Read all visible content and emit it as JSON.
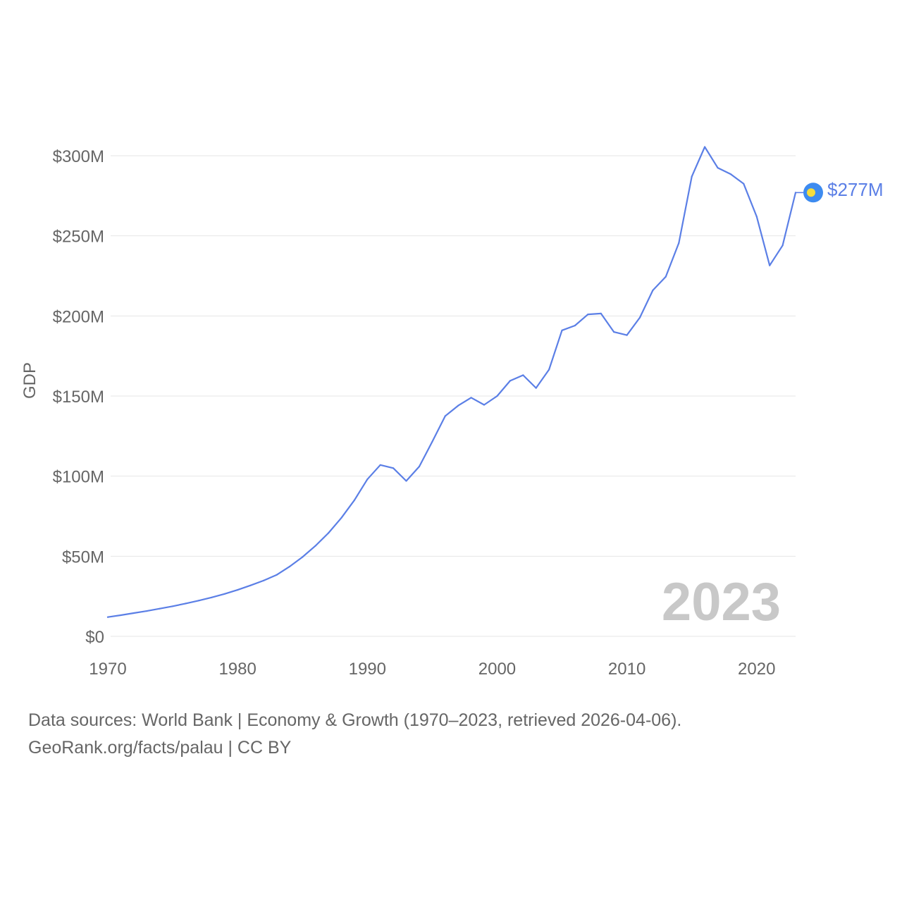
{
  "chart_data": {
    "type": "line",
    "title": "",
    "xlabel": "",
    "ylabel": "GDP",
    "xlim": [
      1970,
      2023
    ],
    "ylim": [
      0,
      300
    ],
    "y_unit": "million USD",
    "x_ticks": [
      1970,
      1980,
      1990,
      2000,
      2010,
      2020
    ],
    "x_tick_labels": [
      "1970",
      "1980",
      "1990",
      "2000",
      "2010",
      "2020"
    ],
    "y_ticks": [
      0,
      50,
      100,
      150,
      200,
      250,
      300
    ],
    "y_tick_labels": [
      "$0",
      "$50M",
      "$100M",
      "$150M",
      "$200M",
      "$250M",
      "$300M"
    ],
    "grid": true,
    "series": [
      {
        "name": "Palau GDP",
        "color": "#5b7fe6",
        "x": [
          1970,
          1971,
          1972,
          1973,
          1974,
          1975,
          1976,
          1977,
          1978,
          1979,
          1980,
          1981,
          1982,
          1983,
          1984,
          1985,
          1986,
          1987,
          1988,
          1989,
          1990,
          1991,
          1992,
          1993,
          1994,
          1995,
          1996,
          1997,
          1998,
          1999,
          2000,
          2001,
          2002,
          2003,
          2004,
          2005,
          2006,
          2007,
          2008,
          2009,
          2010,
          2011,
          2012,
          2013,
          2014,
          2015,
          2016,
          2017,
          2018,
          2019,
          2020,
          2021,
          2022,
          2023
        ],
        "values": [
          12,
          13.2,
          14.5,
          15.8,
          17.3,
          18.8,
          20.5,
          22.3,
          24.3,
          26.5,
          29,
          31.8,
          34.8,
          38.3,
          43.5,
          49.5,
          56.5,
          64.5,
          74,
          85,
          98,
          107,
          105,
          97,
          106,
          121.5,
          137.5,
          144,
          149,
          144.5,
          150,
          159.5,
          163,
          155,
          166.5,
          191,
          194,
          201,
          201.5,
          190,
          188,
          199,
          216,
          224.5,
          245.5,
          287,
          305.5,
          292.5,
          288.5,
          282.5,
          262,
          231.5,
          244,
          277
        ]
      }
    ],
    "annotations": [
      {
        "text": "2023",
        "role": "current-year-watermark"
      },
      {
        "text": "$277M",
        "role": "end-value-label",
        "x": 2023,
        "y": 277
      }
    ]
  },
  "colors": {
    "line": "#5b7fe6",
    "marker_outer": "#3d8bf0",
    "marker_inner": "#f5dc3c",
    "text": "#666666",
    "grid": "#e6e6e6",
    "watermark": "#c8c8c8"
  },
  "footer": {
    "sources": "Data sources: World Bank | Economy & Growth (1970–2023, retrieved 2026-04-06).",
    "credit": "GeoRank.org/facts/palau | CC BY"
  }
}
